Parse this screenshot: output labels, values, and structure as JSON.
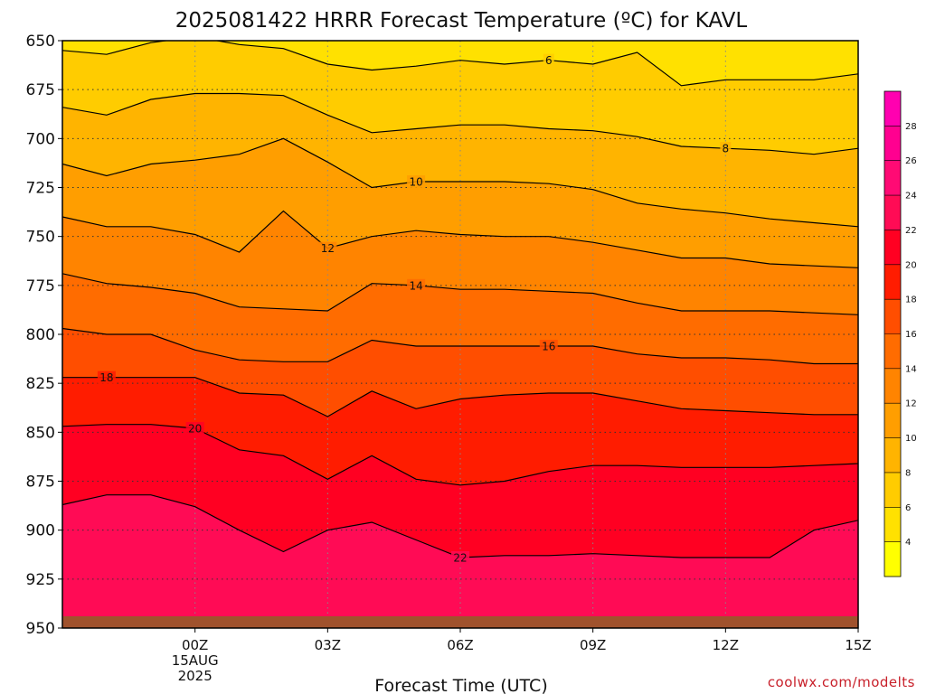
{
  "chart_data": {
    "type": "heatmap",
    "title": "2025081422 HRRR Forecast Temperature (ºC) for KAVL",
    "xlabel": "Forecast Time (UTC)",
    "ylabel": "",
    "credit": "coolwx.com/modelts",
    "x_range_hours": [
      -3,
      15
    ],
    "y_range_mb": [
      650,
      950
    ],
    "y_ticks": [
      "650",
      "675",
      "700",
      "725",
      "750",
      "775",
      "800",
      "825",
      "850",
      "875",
      "900",
      "925",
      "950"
    ],
    "x_ticks": [
      {
        "h": 0,
        "label": "00Z",
        "date": "15AUG",
        "year": "2025"
      },
      {
        "h": 3,
        "label": "03Z"
      },
      {
        "h": 6,
        "label": "06Z"
      },
      {
        "h": 9,
        "label": "09Z"
      },
      {
        "h": 12,
        "label": "12Z"
      },
      {
        "h": 15,
        "label": "15Z"
      }
    ],
    "colorbar": {
      "levels": [
        2,
        4,
        6,
        8,
        10,
        12,
        14,
        16,
        18,
        20,
        22,
        24,
        26,
        28,
        30
      ],
      "tick_labels": [
        "4",
        "6",
        "8",
        "10",
        "12",
        "14",
        "16",
        "18",
        "20",
        "22",
        "24",
        "26",
        "28"
      ],
      "colors": [
        "#ffff00",
        "#ffe100",
        "#ffcc00",
        "#ffb400",
        "#ff9e00",
        "#ff8400",
        "#ff6c00",
        "#ff4e00",
        "#ff1c00",
        "#ff0022",
        "#ff0b55",
        "#ff0a74",
        "#ff0090",
        "#ff00b0"
      ]
    },
    "ground_color": "#a0522d",
    "grid": "dotted",
    "hours": [
      -3,
      -2,
      -1,
      0,
      1,
      2,
      3,
      4,
      5,
      6,
      7,
      8,
      9,
      10,
      11,
      12,
      13,
      14,
      15,
      16
    ],
    "isotherms": [
      {
        "t": 6,
        "label_h": 8,
        "p": [
          655,
          657,
          651,
          648,
          652,
          654,
          662,
          665,
          663,
          660,
          662,
          660,
          662,
          656,
          673,
          670,
          670,
          670,
          667,
          677
        ]
      },
      {
        "t": 8,
        "label_h": 12,
        "p": [
          684,
          688,
          680,
          677,
          677,
          678,
          688,
          697,
          695,
          693,
          693,
          695,
          696,
          699,
          704,
          705,
          706,
          708,
          705,
          706
        ]
      },
      {
        "t": 10,
        "label_h": 5,
        "p": [
          713,
          719,
          713,
          711,
          708,
          700,
          712,
          725,
          722,
          722,
          722,
          723,
          726,
          733,
          736,
          738,
          741,
          743,
          745,
          740
        ]
      },
      {
        "t": 12,
        "label_h": 3,
        "p": [
          740,
          745,
          745,
          749,
          758,
          737,
          756,
          750,
          747,
          749,
          750,
          750,
          753,
          757,
          761,
          761,
          764,
          765,
          766,
          763
        ]
      },
      {
        "t": 14,
        "label_h": 5,
        "p": [
          769,
          774,
          776,
          779,
          786,
          787,
          788,
          774,
          775,
          777,
          777,
          778,
          779,
          784,
          788,
          788,
          788,
          789,
          790,
          788
        ]
      },
      {
        "t": 16,
        "label_h": 8,
        "p": [
          797,
          800,
          800,
          808,
          813,
          814,
          814,
          803,
          806,
          806,
          806,
          806,
          806,
          810,
          812,
          812,
          813,
          815,
          815,
          813
        ]
      },
      {
        "t": 18,
        "label_h": -2,
        "p": [
          822,
          822,
          822,
          822,
          830,
          831,
          842,
          829,
          838,
          833,
          831,
          830,
          830,
          834,
          838,
          839,
          840,
          841,
          841,
          840
        ]
      },
      {
        "t": 20,
        "label_h": 0,
        "p": [
          847,
          846,
          846,
          848,
          859,
          862,
          874,
          862,
          874,
          877,
          875,
          870,
          867,
          867,
          868,
          868,
          868,
          867,
          866,
          862
        ]
      },
      {
        "t": 22,
        "label_h": 6,
        "p": [
          887,
          882,
          882,
          888,
          900,
          911,
          900,
          896,
          905,
          914,
          913,
          913,
          912,
          913,
          914,
          914,
          914,
          900,
          895,
          890
        ]
      }
    ]
  }
}
